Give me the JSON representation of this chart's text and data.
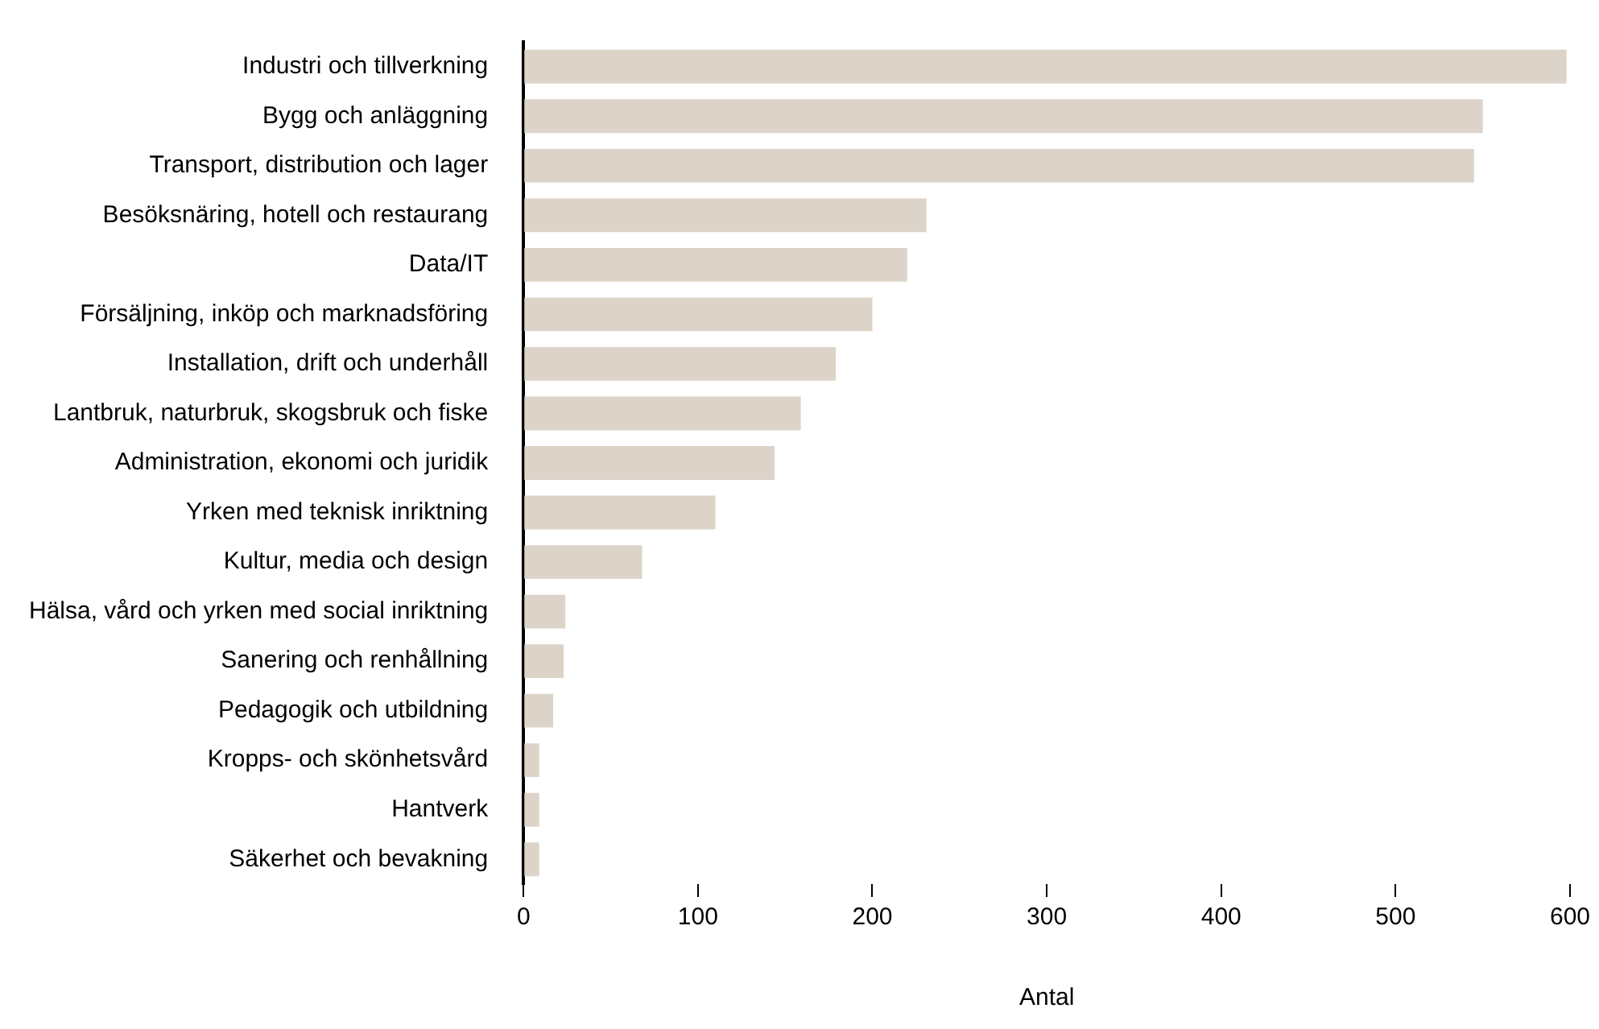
{
  "chart_data": {
    "type": "bar",
    "orientation": "horizontal",
    "xlabel": "Antal",
    "categories": [
      "Industri och tillverkning",
      "Bygg och anläggning",
      "Transport, distribution och lager",
      "Besöksnäring, hotell och restaurang",
      "Data/IT",
      "Försäljning, inköp och marknadsföring",
      "Installation, drift och underhåll",
      "Lantbruk, naturbruk, skogsbruk och fiske",
      "Administration, ekonomi och juridik",
      "Yrken med teknisk inriktning",
      "Kultur, media och design",
      "Hälsa, vård och yrken med social inriktning",
      "Sanering och renhållning",
      "Pedagogik och utbildning",
      "Kropps- och skönhetsvård",
      "Hantverk",
      "Säkerhet och bevakning"
    ],
    "values": [
      598,
      550,
      545,
      231,
      220,
      200,
      179,
      159,
      144,
      110,
      68,
      24,
      23,
      17,
      9,
      9,
      9
    ],
    "color": "#ddd4c9",
    "xlim": [
      0,
      600
    ],
    "xticks": [
      0,
      100,
      200,
      300,
      400,
      500,
      600
    ],
    "grid": false,
    "legend": false
  }
}
